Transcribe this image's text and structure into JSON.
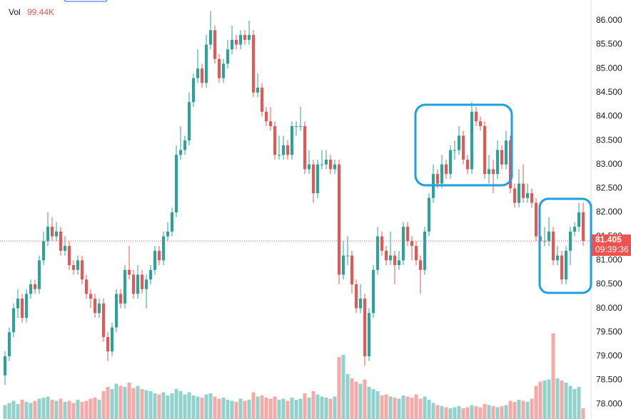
{
  "chart_data": {
    "type": "candlestick",
    "volume_title": "Vol",
    "volume_last_label": "99.44K",
    "volume_unit_scale": "K",
    "last_price": 81.405,
    "countdown": "09:39:36",
    "up_color": "#26a69a",
    "down_color": "#ef5350",
    "ylim": [
      77.69,
      86.43
    ],
    "yticks": [
      {
        "value": 78,
        "label": "78.000"
      },
      {
        "value": 78.5,
        "label": "78.500"
      },
      {
        "value": 79,
        "label": "79.000"
      },
      {
        "value": 79.5,
        "label": "79.500"
      },
      {
        "value": 80,
        "label": "80.000"
      },
      {
        "value": 80.5,
        "label": "80.500"
      },
      {
        "value": 81,
        "label": "81.000"
      },
      {
        "value": 81.5,
        "label": "81.500"
      },
      {
        "value": 82,
        "label": "82.000"
      },
      {
        "value": 82.5,
        "label": "82.500"
      },
      {
        "value": 83,
        "label": "83.000"
      },
      {
        "value": 83.5,
        "label": "83.500"
      },
      {
        "value": 84,
        "label": "84.000"
      },
      {
        "value": 84.5,
        "label": "84.500"
      },
      {
        "value": 85,
        "label": "85.000"
      },
      {
        "value": 85.5,
        "label": "85.500"
      },
      {
        "value": 86,
        "label": "86.000"
      }
    ],
    "candles": [
      [
        78.6,
        79.1,
        78.4,
        79.0
      ],
      [
        79.0,
        79.6,
        78.9,
        79.5
      ],
      [
        79.5,
        80.1,
        79.4,
        80.0
      ],
      [
        80.0,
        80.4,
        79.8,
        80.2
      ],
      [
        80.2,
        80.3,
        79.7,
        79.8
      ],
      [
        79.8,
        80.4,
        79.7,
        80.3
      ],
      [
        80.3,
        80.6,
        80.2,
        80.5
      ],
      [
        80.5,
        80.6,
        80.3,
        80.4
      ],
      [
        80.4,
        81.1,
        80.3,
        81.0
      ],
      [
        81.0,
        81.6,
        80.9,
        81.4
      ],
      [
        81.4,
        82.0,
        81.3,
        81.7
      ],
      [
        81.7,
        81.9,
        81.4,
        81.5
      ],
      [
        81.5,
        81.8,
        81.4,
        81.6
      ],
      [
        81.6,
        81.7,
        81.1,
        81.2
      ],
      [
        81.2,
        81.5,
        81.1,
        81.3
      ],
      [
        81.3,
        81.4,
        80.8,
        80.9
      ],
      [
        80.9,
        81.0,
        80.7,
        80.8
      ],
      [
        80.8,
        81.1,
        80.7,
        81.0
      ],
      [
        81.0,
        81.1,
        80.5,
        80.6
      ],
      [
        80.6,
        80.7,
        80.2,
        80.3
      ],
      [
        80.3,
        80.4,
        80.0,
        80.2
      ],
      [
        80.2,
        80.3,
        79.8,
        79.9
      ],
      [
        79.9,
        80.2,
        79.8,
        80.1
      ],
      [
        80.1,
        80.2,
        79.3,
        79.4
      ],
      [
        79.4,
        79.5,
        78.9,
        79.1
      ],
      [
        79.1,
        79.7,
        79.0,
        79.6
      ],
      [
        79.6,
        80.4,
        79.5,
        80.3
      ],
      [
        80.3,
        80.4,
        80.0,
        80.1
      ],
      [
        80.1,
        80.9,
        80.0,
        80.8
      ],
      [
        80.8,
        81.3,
        80.6,
        80.7
      ],
      [
        80.7,
        80.8,
        80.2,
        80.3
      ],
      [
        80.3,
        80.9,
        80.2,
        80.7
      ],
      [
        80.7,
        80.8,
        80.3,
        80.4
      ],
      [
        80.4,
        80.7,
        80.0,
        80.6
      ],
      [
        80.6,
        80.9,
        80.5,
        80.8
      ],
      [
        80.8,
        81.3,
        80.7,
        81.2
      ],
      [
        81.2,
        81.3,
        80.9,
        81.0
      ],
      [
        81.0,
        81.6,
        80.9,
        81.5
      ],
      [
        81.5,
        81.8,
        81.4,
        81.6
      ],
      [
        81.6,
        82.1,
        81.5,
        82.0
      ],
      [
        82.0,
        83.4,
        81.9,
        83.2
      ],
      [
        83.2,
        83.8,
        83.1,
        83.3
      ],
      [
        83.3,
        83.6,
        83.2,
        83.5
      ],
      [
        83.5,
        84.5,
        83.4,
        84.3
      ],
      [
        84.3,
        84.9,
        84.2,
        84.8
      ],
      [
        84.8,
        85.4,
        84.7,
        85.0
      ],
      [
        85.0,
        85.1,
        84.6,
        84.7
      ],
      [
        84.7,
        85.7,
        84.6,
        85.5
      ],
      [
        85.5,
        86.2,
        85.4,
        85.8
      ],
      [
        85.8,
        85.9,
        85.1,
        85.2
      ],
      [
        85.2,
        85.3,
        84.7,
        84.8
      ],
      [
        84.8,
        85.2,
        84.7,
        85.1
      ],
      [
        85.1,
        85.6,
        85.0,
        85.4
      ],
      [
        85.4,
        85.9,
        85.3,
        85.6
      ],
      [
        85.6,
        85.7,
        85.4,
        85.5
      ],
      [
        85.5,
        85.8,
        85.4,
        85.7
      ],
      [
        85.7,
        85.8,
        85.5,
        85.6
      ],
      [
        85.6,
        86.0,
        85.5,
        85.7
      ],
      [
        85.7,
        85.8,
        84.4,
        84.5
      ],
      [
        84.5,
        84.9,
        84.4,
        84.6
      ],
      [
        84.6,
        84.7,
        84.0,
        84.1
      ],
      [
        84.1,
        84.2,
        83.8,
        83.9
      ],
      [
        83.9,
        84.2,
        83.7,
        83.8
      ],
      [
        83.8,
        83.9,
        83.1,
        83.2
      ],
      [
        83.2,
        83.6,
        83.1,
        83.2
      ],
      [
        83.2,
        83.6,
        83.1,
        83.4
      ],
      [
        83.4,
        83.5,
        83.1,
        83.2
      ],
      [
        83.2,
        83.9,
        83.1,
        83.8
      ],
      [
        83.8,
        83.9,
        83.6,
        83.8
      ],
      [
        83.8,
        84.2,
        83.7,
        83.8
      ],
      [
        83.8,
        83.9,
        82.8,
        82.9
      ],
      [
        82.9,
        83.3,
        82.8,
        83.0
      ],
      [
        83.0,
        83.1,
        82.2,
        82.4
      ],
      [
        82.4,
        83.1,
        82.3,
        83.0
      ],
      [
        83.0,
        83.3,
        82.9,
        83.0
      ],
      [
        83.0,
        83.3,
        82.9,
        83.1
      ],
      [
        83.1,
        83.2,
        82.8,
        82.9
      ],
      [
        82.9,
        83.1,
        82.8,
        83.0
      ],
      [
        83.0,
        83.1,
        80.5,
        80.7
      ],
      [
        80.7,
        81.4,
        80.6,
        81.1
      ],
      [
        81.1,
        81.5,
        80.9,
        81.1
      ],
      [
        81.1,
        81.2,
        80.3,
        80.5
      ],
      [
        80.5,
        80.6,
        79.9,
        80.0
      ],
      [
        80.0,
        80.5,
        79.9,
        80.2
      ],
      [
        80.2,
        80.3,
        78.8,
        79.0
      ],
      [
        79.0,
        80.0,
        78.9,
        79.9
      ],
      [
        79.9,
        80.9,
        79.8,
        80.8
      ],
      [
        80.8,
        81.7,
        80.7,
        81.5
      ],
      [
        81.5,
        81.6,
        81.1,
        81.2
      ],
      [
        81.2,
        81.3,
        80.9,
        81.0
      ],
      [
        81.0,
        81.6,
        80.9,
        81.1
      ],
      [
        81.1,
        81.2,
        80.5,
        80.9
      ],
      [
        80.9,
        81.2,
        80.8,
        81.0
      ],
      [
        81.0,
        81.8,
        80.9,
        81.7
      ],
      [
        81.7,
        81.8,
        81.3,
        81.4
      ],
      [
        81.4,
        81.5,
        81.0,
        81.3
      ],
      [
        81.3,
        81.4,
        80.9,
        81.0
      ],
      [
        81.0,
        81.1,
        80.3,
        80.8
      ],
      [
        80.8,
        81.7,
        80.7,
        81.6
      ],
      [
        81.6,
        82.4,
        81.5,
        82.3
      ],
      [
        82.3,
        83.0,
        82.2,
        82.8
      ],
      [
        82.8,
        82.9,
        82.5,
        82.6
      ],
      [
        82.6,
        83.2,
        82.5,
        83.0
      ],
      [
        83.0,
        83.1,
        82.7,
        82.8
      ],
      [
        82.8,
        83.4,
        82.7,
        83.3
      ],
      [
        83.3,
        83.5,
        83.1,
        83.3
      ],
      [
        83.3,
        83.8,
        83.2,
        83.6
      ],
      [
        83.6,
        83.7,
        83.0,
        83.1
      ],
      [
        83.1,
        83.2,
        82.8,
        82.9
      ],
      [
        82.9,
        84.3,
        82.8,
        84.1
      ],
      [
        84.1,
        84.2,
        83.8,
        83.9
      ],
      [
        83.9,
        84.0,
        83.7,
        83.8
      ],
      [
        83.8,
        83.9,
        82.7,
        82.8
      ],
      [
        82.8,
        83.2,
        82.6,
        82.9
      ],
      [
        82.9,
        83.1,
        82.4,
        82.8
      ],
      [
        82.8,
        83.5,
        82.7,
        83.3
      ],
      [
        83.3,
        83.4,
        82.9,
        83.0
      ],
      [
        83.0,
        83.7,
        82.9,
        83.5
      ],
      [
        83.5,
        83.6,
        82.4,
        82.5
      ],
      [
        82.5,
        82.6,
        82.1,
        82.2
      ],
      [
        82.2,
        82.9,
        82.1,
        82.6
      ],
      [
        82.6,
        83.0,
        82.2,
        82.3
      ],
      [
        82.3,
        82.6,
        82.2,
        82.4
      ],
      [
        82.4,
        82.5,
        82.1,
        82.2
      ],
      [
        82.2,
        82.3,
        81.4,
        81.5
      ],
      [
        81.5,
        82.2,
        81.3,
        81.4
      ],
      [
        81.4,
        81.7,
        81.3,
        81.4
      ],
      [
        81.4,
        81.9,
        81.3,
        81.6
      ],
      [
        81.6,
        81.7,
        80.9,
        81.0
      ],
      [
        81.0,
        81.3,
        80.9,
        81.1
      ],
      [
        81.1,
        81.2,
        80.5,
        80.6
      ],
      [
        80.6,
        81.3,
        80.5,
        81.2
      ],
      [
        81.2,
        81.7,
        80.9,
        81.6
      ],
      [
        81.6,
        81.8,
        81.5,
        81.7
      ],
      [
        81.7,
        82.2,
        81.6,
        82.0
      ],
      [
        82.0,
        82.2,
        81.3,
        81.405
      ]
    ],
    "volumes": [
      130,
      150,
      170,
      140,
      180,
      160,
      150,
      170,
      190,
      200,
      210,
      180,
      170,
      190,
      160,
      170,
      150,
      180,
      160,
      170,
      190,
      200,
      180,
      260,
      300,
      280,
      330,
      310,
      300,
      340,
      290,
      310,
      280,
      270,
      260,
      240,
      230,
      250,
      220,
      240,
      280,
      260,
      230,
      250,
      220,
      210,
      200,
      230,
      240,
      210,
      190,
      200,
      180,
      170,
      160,
      190,
      170,
      180,
      250,
      210,
      220,
      200,
      190,
      210,
      180,
      190,
      170,
      200,
      180,
      190,
      240,
      200,
      260,
      230,
      210,
      200,
      190,
      210,
      580,
      600,
      420,
      380,
      350,
      330,
      370,
      300,
      280,
      260,
      220,
      230,
      210,
      200,
      190,
      220,
      210,
      200,
      230,
      190,
      210,
      180,
      150,
      130,
      120,
      110,
      100,
      110,
      120,
      100,
      110,
      130,
      120,
      110,
      140,
      130,
      120,
      110,
      120,
      130,
      170,
      160,
      180,
      170,
      160,
      190,
      310,
      350,
      360,
      370,
      800,
      380,
      360,
      340,
      310,
      280,
      300,
      99.44
    ]
  }
}
